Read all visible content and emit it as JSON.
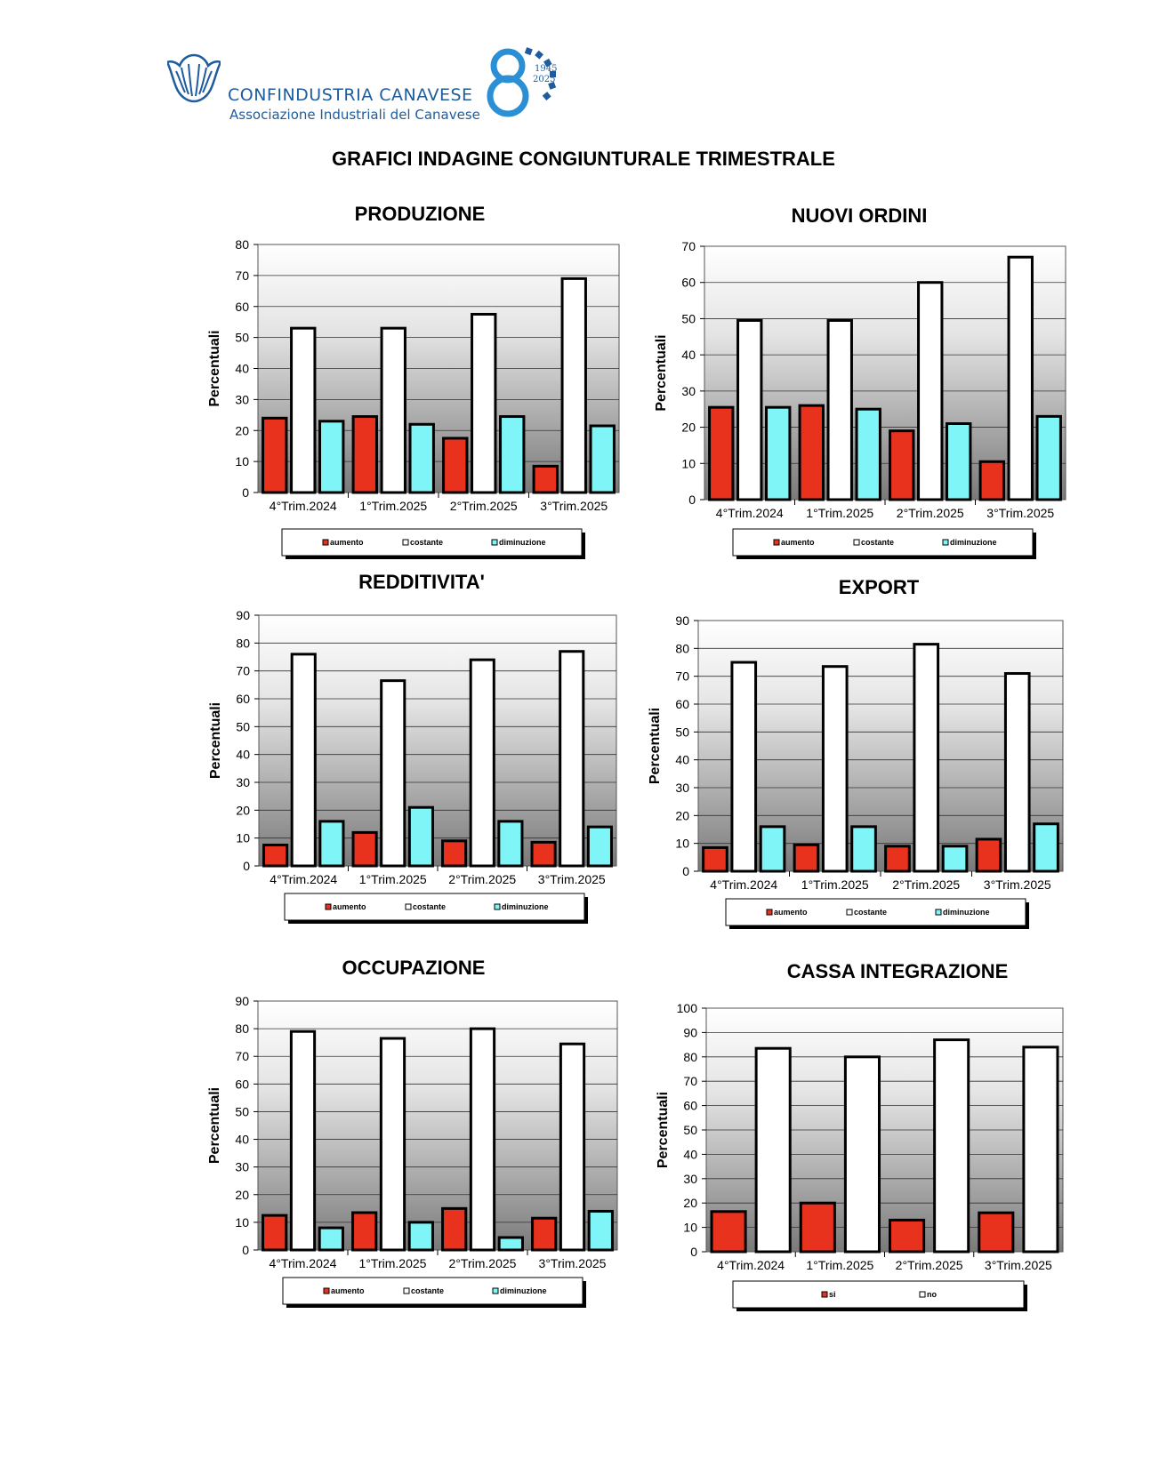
{
  "header": {
    "org_name": "CONFINDUSTRIA CANAVESE",
    "org_subtitle": "Associazione Industriali del Canavese",
    "anniversary_years": [
      "1945",
      "2025"
    ]
  },
  "main_title": "GRAFICI INDAGINE CONGIUNTURALE TRIMESTRALE",
  "colors": {
    "aumento": "#e8321e",
    "costante": "#ffffff",
    "diminuzione": "#7ff5f7",
    "brand": "#1f5c9e"
  },
  "chart_data": [
    {
      "id": "produzione",
      "type": "bar",
      "title": "PRODUZIONE",
      "ylabel": "Percentuali",
      "categories": [
        "4°Trim.2024",
        "1°Trim.2025",
        "2°Trim.2025",
        "3°Trim.2025"
      ],
      "ylim": [
        0,
        80
      ],
      "ytick_step": 10,
      "grid": true,
      "legend_position": "bottom",
      "series": [
        {
          "name": "aumento",
          "values": [
            24,
            24.5,
            17.5,
            8.5
          ]
        },
        {
          "name": "costante",
          "values": [
            53,
            53,
            57.5,
            69
          ]
        },
        {
          "name": "diminuzione",
          "values": [
            23,
            22,
            24.5,
            21.5
          ]
        }
      ]
    },
    {
      "id": "nuovi-ordini",
      "type": "bar",
      "title": "NUOVI ORDINI",
      "ylabel": "Percentuali",
      "categories": [
        "4°Trim.2024",
        "1°Trim.2025",
        "2°Trim.2025",
        "3°Trim.2025"
      ],
      "ylim": [
        0,
        70
      ],
      "ytick_step": 10,
      "grid": true,
      "legend_position": "bottom",
      "series": [
        {
          "name": "aumento",
          "values": [
            25.5,
            26,
            19,
            10.5
          ]
        },
        {
          "name": "costante",
          "values": [
            49.5,
            49.5,
            60,
            67
          ]
        },
        {
          "name": "diminuzione",
          "values": [
            25.5,
            25,
            21,
            23
          ]
        }
      ]
    },
    {
      "id": "redditivita",
      "type": "bar",
      "title": "REDDITIVITA'",
      "ylabel": "Percentuali",
      "categories": [
        "4°Trim.2024",
        "1°Trim.2025",
        "2°Trim.2025",
        "3°Trim.2025"
      ],
      "ylim": [
        0,
        90
      ],
      "ytick_step": 10,
      "grid": true,
      "legend_position": "bottom",
      "series": [
        {
          "name": "aumento",
          "values": [
            7.5,
            12,
            9,
            8.5
          ]
        },
        {
          "name": "costante",
          "values": [
            76,
            66.5,
            74,
            77
          ]
        },
        {
          "name": "diminuzione",
          "values": [
            16,
            21,
            16,
            14
          ]
        }
      ]
    },
    {
      "id": "export",
      "type": "bar",
      "title": "EXPORT",
      "ylabel": "Percentuali",
      "categories": [
        "4°Trim.2024",
        "1°Trim.2025",
        "2°Trim.2025",
        "3°Trim.2025"
      ],
      "ylim": [
        0,
        90
      ],
      "ytick_step": 10,
      "grid": true,
      "legend_position": "bottom",
      "series": [
        {
          "name": "aumento",
          "values": [
            8.5,
            9.5,
            9,
            11.5
          ]
        },
        {
          "name": "costante",
          "values": [
            75,
            73.5,
            81.5,
            71
          ]
        },
        {
          "name": "diminuzione",
          "values": [
            16,
            16,
            9,
            17
          ]
        }
      ]
    },
    {
      "id": "occupazione",
      "type": "bar",
      "title": "OCCUPAZIONE",
      "ylabel": "Percentuali",
      "categories": [
        "4°Trim.2024",
        "1°Trim.2025",
        "2°Trim.2025",
        "3°Trim.2025"
      ],
      "ylim": [
        0,
        90
      ],
      "ytick_step": 10,
      "grid": true,
      "legend_position": "bottom",
      "series": [
        {
          "name": "aumento",
          "values": [
            12.5,
            13.5,
            15,
            11.5
          ]
        },
        {
          "name": "costante",
          "values": [
            79,
            76.5,
            80,
            74.5
          ]
        },
        {
          "name": "diminuzione",
          "values": [
            8,
            10,
            4.5,
            14
          ]
        }
      ]
    },
    {
      "id": "cassa-integrazione",
      "type": "bar",
      "title": "CASSA INTEGRAZIONE",
      "ylabel": "Percentuali",
      "categories": [
        "4°Trim.2024",
        "1°Trim.2025",
        "2°Trim.2025",
        "3°Trim.2025"
      ],
      "ylim": [
        0,
        100
      ],
      "ytick_step": 10,
      "grid": true,
      "legend_position": "bottom",
      "series": [
        {
          "name": "si",
          "values": [
            16.5,
            20,
            13,
            16
          ]
        },
        {
          "name": "no",
          "values": [
            83.5,
            80,
            87,
            84
          ]
        }
      ]
    }
  ]
}
